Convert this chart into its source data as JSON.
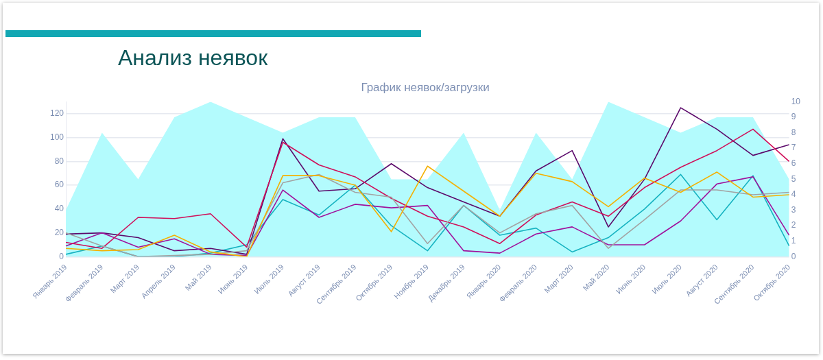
{
  "chart_data": {
    "type": "line",
    "title": "Анализ неявок",
    "subtitle": "График неявок/загрузки",
    "categories": [
      "Январь 2019",
      "Февраль 2019",
      "Март 2019",
      "Апрель 2019",
      "Май 2019",
      "Июнь 2019",
      "Июль 2019",
      "Август 2019",
      "Сентябрь 2019",
      "Октябрь 2019",
      "Ноябрь 2019",
      "Декабрь 2019",
      "Январь 2020",
      "Февраль 2020",
      "Март 2020",
      "Май 2020",
      "Июнь 2020",
      "Июль 2020",
      "Август 2020",
      "Сентябрь 2020",
      "Октябрь 2020"
    ],
    "series": [
      {
        "type": "area",
        "axis": "y2",
        "color": "#b3fbfd",
        "values": [
          3,
          8,
          5,
          9,
          10,
          9,
          8,
          9,
          9,
          5,
          5,
          8,
          3,
          8,
          5,
          10,
          9,
          8,
          9,
          9,
          5
        ]
      },
      {
        "color": "#f5b000",
        "values": [
          7,
          5,
          6,
          18,
          4,
          0,
          68,
          68,
          60,
          21,
          76,
          55,
          34,
          70,
          63,
          42,
          66,
          54,
          71,
          50,
          52
        ]
      },
      {
        "color": "#a3a3a3",
        "values": [
          20,
          9,
          0,
          1,
          2,
          5,
          62,
          69,
          54,
          50,
          11,
          43,
          20,
          36,
          43,
          7,
          31,
          56,
          56,
          52,
          54
        ]
      },
      {
        "color": "#d0105a",
        "values": [
          12,
          7,
          33,
          32,
          36,
          8,
          96,
          77,
          67,
          49,
          34,
          25,
          11,
          35,
          46,
          34,
          58,
          75,
          89,
          107,
          80
        ]
      },
      {
        "color": "#a0139c",
        "values": [
          9,
          20,
          8,
          15,
          2,
          1,
          56,
          33,
          44,
          41,
          43,
          5,
          3,
          19,
          25,
          10,
          10,
          30,
          61,
          67,
          18
        ]
      },
      {
        "color": "#5c0a6b",
        "values": [
          19,
          20,
          16,
          5,
          7,
          2,
          99,
          55,
          57,
          78,
          58,
          46,
          34,
          72,
          89,
          25,
          65,
          125,
          107,
          85,
          94
        ]
      },
      {
        "color": "#17b3c1",
        "values": [
          2,
          9,
          0,
          0,
          3,
          10,
          48,
          35,
          60,
          26,
          5,
          43,
          18,
          24,
          4,
          16,
          40,
          69,
          31,
          68,
          9
        ]
      }
    ],
    "ylim": [
      0,
      130
    ],
    "yticks": [
      0,
      20,
      40,
      60,
      80,
      100,
      120
    ],
    "y2lim": [
      0,
      10
    ],
    "y2ticks": [
      0,
      1,
      2,
      3,
      4,
      5,
      6,
      7,
      8,
      9,
      10
    ],
    "grid": "y",
    "legend": false,
    "marker": "none",
    "line_style": "solid"
  }
}
